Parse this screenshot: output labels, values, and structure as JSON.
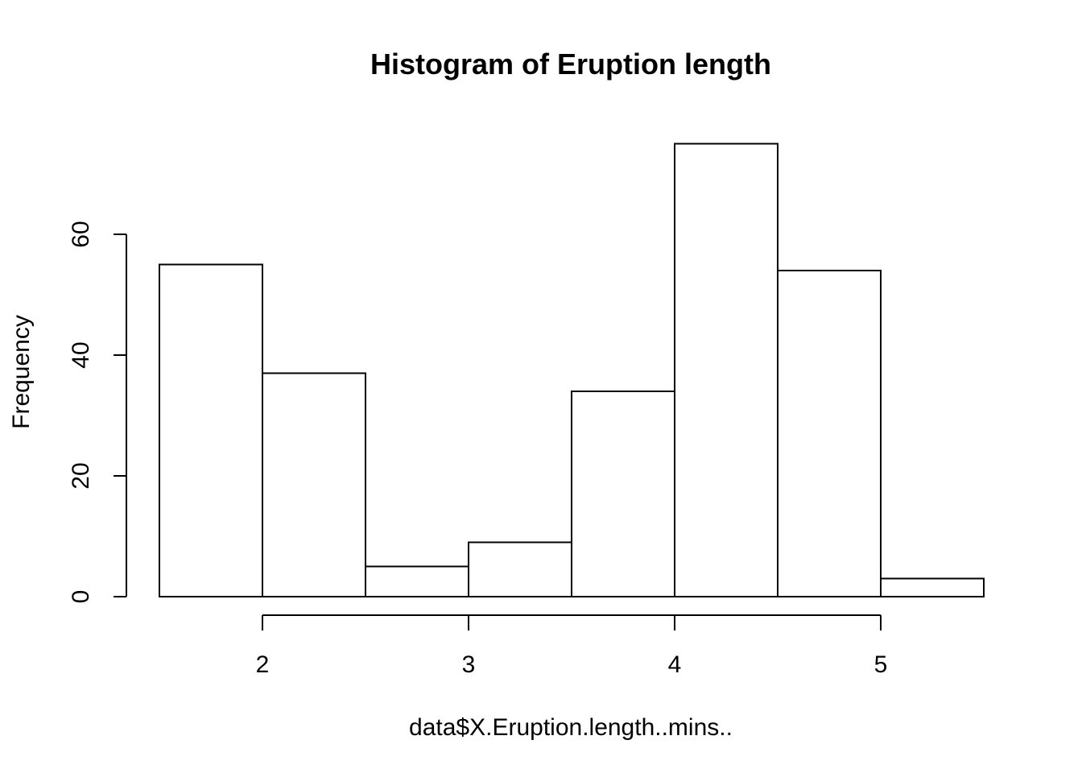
{
  "chart_data": {
    "type": "bar",
    "title": "Histogram of Eruption length",
    "xlabel": "data$X.Eruption.length..mins..",
    "ylabel": "Frequency",
    "bins": [
      {
        "start": 1.5,
        "end": 2.0,
        "count": 55
      },
      {
        "start": 2.0,
        "end": 2.5,
        "count": 37
      },
      {
        "start": 2.5,
        "end": 3.0,
        "count": 5
      },
      {
        "start": 3.0,
        "end": 3.5,
        "count": 9
      },
      {
        "start": 3.5,
        "end": 4.0,
        "count": 34
      },
      {
        "start": 4.0,
        "end": 4.5,
        "count": 75
      },
      {
        "start": 4.5,
        "end": 5.0,
        "count": 54
      },
      {
        "start": 5.0,
        "end": 5.5,
        "count": 3
      }
    ],
    "xticks": [
      2,
      3,
      4,
      5
    ],
    "xtick_labels": [
      "2",
      "3",
      "4",
      "5"
    ],
    "yticks": [
      0,
      20,
      40,
      60
    ],
    "ytick_labels": [
      "0",
      "20",
      "40",
      "60"
    ],
    "xlim": [
      1.5,
      5.5
    ],
    "ylim": [
      0,
      75
    ],
    "grid": false,
    "legend": "none",
    "bar_fill": "#ffffff",
    "bar_stroke": "#000000"
  }
}
